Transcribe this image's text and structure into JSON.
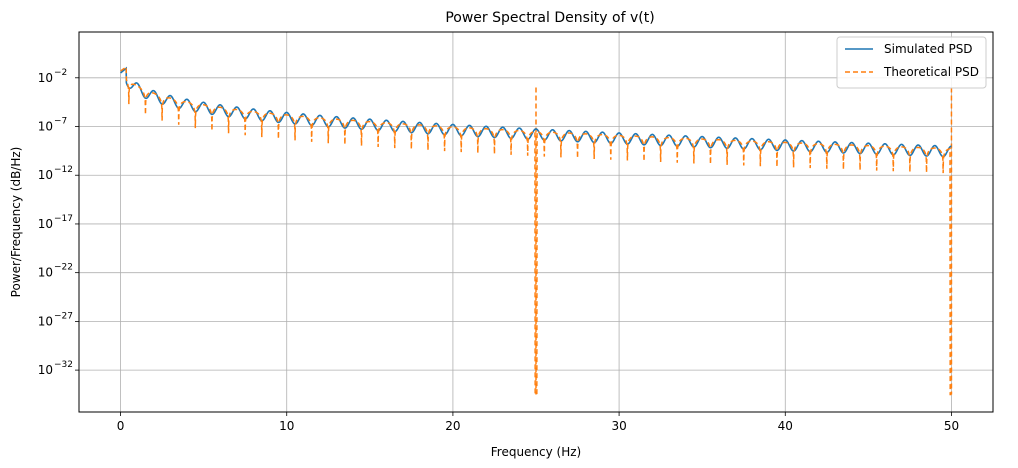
{
  "chart_data": {
    "type": "line",
    "title": "Power Spectral Density of v(t)",
    "xlabel": "Frequency (Hz)",
    "ylabel": "Power/Frequency (dB/Hz)",
    "xlim": [
      -2.5,
      52.5
    ],
    "ylog_exponent_range": [
      -36.3,
      2.7
    ],
    "xticks": [
      0,
      10,
      20,
      30,
      40,
      50
    ],
    "xtick_labels": [
      "0",
      "10",
      "20",
      "30",
      "40",
      "50"
    ],
    "yticks_exponents": [
      -32,
      -27,
      -22,
      -17,
      -12,
      -7,
      -2
    ],
    "ytick_labels": [
      "10",
      "10",
      "10",
      "10",
      "10",
      "10",
      "10"
    ],
    "ytick_exponent_labels": [
      "−32",
      "−27",
      "−22",
      "−17",
      "−12",
      "−7",
      "−2"
    ],
    "grid": true,
    "legend_position": "top-right",
    "series": [
      {
        "name": "Simulated PSD",
        "color": "#1f77b4",
        "style": "solid",
        "x_start": 0,
        "x_end": 50,
        "points": [
          [
            0,
            0.06
          ],
          [
            0.3,
            0.3
          ],
          [
            0.6,
            0.15
          ],
          [
            0.9,
            0.02
          ],
          [
            1.1,
            0.003
          ],
          [
            1.5,
            0.012
          ],
          [
            2.0,
            0.004
          ],
          [
            2.5,
            0.0025
          ],
          [
            3.0,
            0.0012
          ],
          [
            3.5,
            0.002
          ],
          [
            4.0,
            0.0005
          ],
          [
            4.5,
            0.0008
          ],
          [
            5.0,
            0.0003
          ],
          [
            6.0,
            0.0004
          ],
          [
            7.0,
            0.00015
          ],
          [
            8.0,
            0.0002
          ],
          [
            10,
            0.0001
          ],
          [
            12,
            8e-05
          ],
          [
            15,
            5e-05
          ],
          [
            20,
            4e-05
          ],
          [
            25,
            3e-05
          ],
          [
            30,
            2e-05
          ],
          [
            35,
            1.5e-05
          ],
          [
            40,
            1e-05
          ],
          [
            45,
            8e-06
          ],
          [
            50,
            3e-06
          ]
        ]
      },
      {
        "name": "Theoretical PSD",
        "color": "#ff7f0e",
        "style": "dashed",
        "x_start": 0,
        "x_end": 50,
        "deep_nulls": [
          {
            "x": 25,
            "y_exponent": -34.5
          },
          {
            "x": 50,
            "y_exponent": -34.5
          }
        ]
      }
    ]
  }
}
